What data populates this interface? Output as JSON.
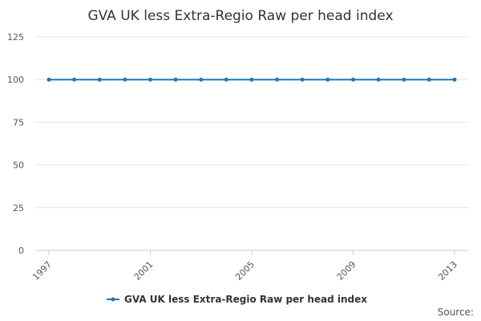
{
  "chart_data": {
    "type": "line",
    "title": "GVA UK less Extra-Regio Raw per head index",
    "xlabel": "",
    "ylabel": "",
    "x": [
      1997,
      1998,
      1999,
      2000,
      2001,
      2002,
      2003,
      2004,
      2005,
      2006,
      2007,
      2008,
      2009,
      2010,
      2011,
      2012,
      2013
    ],
    "xticks": [
      "1997",
      "2001",
      "2005",
      "2009",
      "2013"
    ],
    "yticks": [
      "0",
      "25",
      "50",
      "75",
      "100",
      "125"
    ],
    "ylim": [
      0,
      125
    ],
    "xlim": [
      1997,
      2013
    ],
    "grid": true,
    "legend_position": "bottom",
    "series": [
      {
        "name": "GVA UK less Extra-Regio Raw per head index",
        "color": "#1f78b4",
        "values": [
          100,
          100,
          100,
          100,
          100,
          100,
          100,
          100,
          100,
          100,
          100,
          100,
          100,
          100,
          100,
          100,
          100
        ]
      }
    ],
    "source_label": "Source:"
  }
}
